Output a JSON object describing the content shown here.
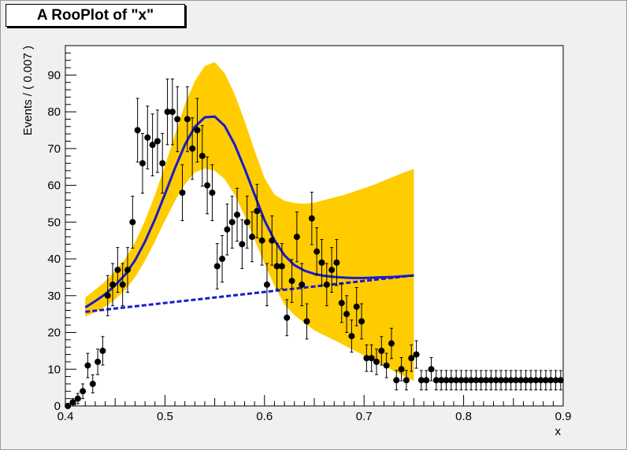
{
  "chart_data": {
    "type": "scatter",
    "title": "A RooPlot of \"x\"",
    "xlabel": "x",
    "ylabel": "Events / ( 0.007 )",
    "xlim": [
      0.4,
      0.9
    ],
    "ylim": [
      0,
      98
    ],
    "x_ticks": [
      0.4,
      0.5,
      0.6,
      0.7,
      0.8,
      0.9
    ],
    "x_tick_labels": [
      "0.4",
      "0.5",
      "0.6",
      "0.7",
      "0.8",
      "0.9"
    ],
    "y_ticks": [
      0,
      10,
      20,
      30,
      40,
      50,
      60,
      70,
      80,
      90
    ],
    "y_tick_labels": [
      "0",
      "10",
      "20",
      "30",
      "40",
      "50",
      "60",
      "70",
      "80",
      "90"
    ],
    "grid": false,
    "colors": {
      "data": "#000000",
      "model": "#1a1acc",
      "band": "#ffcc00"
    },
    "data_points": {
      "x": [
        0.4025,
        0.4075,
        0.4125,
        0.4175,
        0.4225,
        0.4275,
        0.4325,
        0.4375,
        0.4425,
        0.4475,
        0.4525,
        0.4575,
        0.4625,
        0.4675,
        0.4725,
        0.4775,
        0.4825,
        0.4875,
        0.4925,
        0.4975,
        0.5025,
        0.5075,
        0.5125,
        0.5175,
        0.5225,
        0.5275,
        0.5325,
        0.5375,
        0.5425,
        0.5475,
        0.5525,
        0.5575,
        0.5625,
        0.5675,
        0.5725,
        0.5775,
        0.5825,
        0.5875,
        0.5925,
        0.5975,
        0.6025,
        0.6075,
        0.6125,
        0.6175,
        0.6225,
        0.6275,
        0.6325,
        0.6375,
        0.6425,
        0.6475,
        0.6525,
        0.6575,
        0.6625,
        0.6675,
        0.6725,
        0.6775,
        0.6825,
        0.6875,
        0.6925,
        0.6975,
        0.7025,
        0.7075,
        0.7125,
        0.7175,
        0.7225,
        0.7275,
        0.7325,
        0.7375,
        0.7425,
        0.7475,
        0.7525,
        0.7575,
        0.7625,
        0.7675,
        0.7725,
        0.7775,
        0.7825,
        0.7875,
        0.7925,
        0.7975,
        0.8025,
        0.8075,
        0.8125,
        0.8175,
        0.8225,
        0.8275,
        0.8325,
        0.8375,
        0.8425,
        0.8475,
        0.8525,
        0.8575,
        0.8625,
        0.8675,
        0.8725,
        0.8775,
        0.8825,
        0.8875,
        0.8925,
        0.8975
      ],
      "y": [
        0,
        1,
        2,
        4,
        11,
        6,
        12,
        15,
        30,
        33,
        37,
        33,
        37,
        50,
        75,
        66,
        73,
        71,
        72,
        66,
        80,
        80,
        78,
        58,
        78,
        70,
        75,
        68,
        60,
        58,
        38,
        40,
        48,
        50,
        52,
        44,
        50,
        46,
        53,
        45,
        33,
        45,
        38,
        38,
        24,
        34,
        46,
        33,
        23,
        51,
        42,
        39,
        33,
        37,
        39,
        28,
        25,
        19,
        27,
        23,
        13,
        13,
        12,
        15,
        11,
        17,
        7,
        10,
        7,
        13,
        14,
        7,
        7,
        10,
        7,
        7,
        7,
        7,
        7,
        7,
        7,
        7,
        7,
        7,
        7,
        7,
        7,
        7,
        7,
        7,
        7,
        7,
        7,
        7,
        7,
        7,
        7,
        7,
        7,
        7
      ]
    },
    "model_curve": {
      "x": [
        0.42,
        0.43,
        0.44,
        0.45,
        0.46,
        0.47,
        0.48,
        0.49,
        0.5,
        0.51,
        0.52,
        0.53,
        0.54,
        0.55,
        0.56,
        0.57,
        0.58,
        0.59,
        0.6,
        0.61,
        0.62,
        0.63,
        0.64,
        0.65,
        0.66,
        0.67,
        0.68,
        0.69,
        0.7,
        0.71,
        0.72,
        0.73,
        0.74,
        0.75
      ],
      "y": [
        26.8,
        28.5,
        30.4,
        32.8,
        35.7,
        39.6,
        44.7,
        50.8,
        57.6,
        64.6,
        71.0,
        75.9,
        78.5,
        78.7,
        76.2,
        71.1,
        64.6,
        57.5,
        50.5,
        45.1,
        41.0,
        38.3,
        36.8,
        35.9,
        35.4,
        35.1,
        34.9,
        34.8,
        34.8,
        34.9,
        35.0,
        35.1,
        35.3,
        35.5
      ]
    },
    "background_line": {
      "x": [
        0.42,
        0.75
      ],
      "y": [
        25.6,
        35.5
      ]
    },
    "error_band": {
      "x": [
        0.42,
        0.43,
        0.44,
        0.45,
        0.46,
        0.47,
        0.48,
        0.49,
        0.5,
        0.51,
        0.52,
        0.53,
        0.54,
        0.55,
        0.56,
        0.57,
        0.58,
        0.59,
        0.6,
        0.61,
        0.62,
        0.63,
        0.64,
        0.65,
        0.66,
        0.67,
        0.68,
        0.69,
        0.7,
        0.71,
        0.72,
        0.73,
        0.74,
        0.75
      ],
      "upper": [
        29.5,
        31.6,
        33.9,
        36.7,
        40.0,
        44.5,
        50.4,
        57.4,
        65.3,
        73.7,
        82.0,
        88.3,
        92.5,
        93.5,
        90.5,
        84.8,
        77.5,
        69.5,
        62.0,
        57.5,
        55.8,
        55.2,
        55.0,
        55.3,
        56.0,
        56.7,
        57.4,
        58.3,
        59.2,
        60.2,
        61.3,
        62.4,
        63.5,
        64.5
      ],
      "lower": [
        24.3,
        25.5,
        27.0,
        29.0,
        31.5,
        35.0,
        39.5,
        44.8,
        50.4,
        55.7,
        60.3,
        63.5,
        64.6,
        64.0,
        61.7,
        57.5,
        51.7,
        45.2,
        38.8,
        32.7,
        27.6,
        24.7,
        22.6,
        20.6,
        19.2,
        17.9,
        16.5,
        15.1,
        13.7,
        12.3,
        10.9,
        9.5,
        8.1,
        6.8
      ]
    }
  }
}
